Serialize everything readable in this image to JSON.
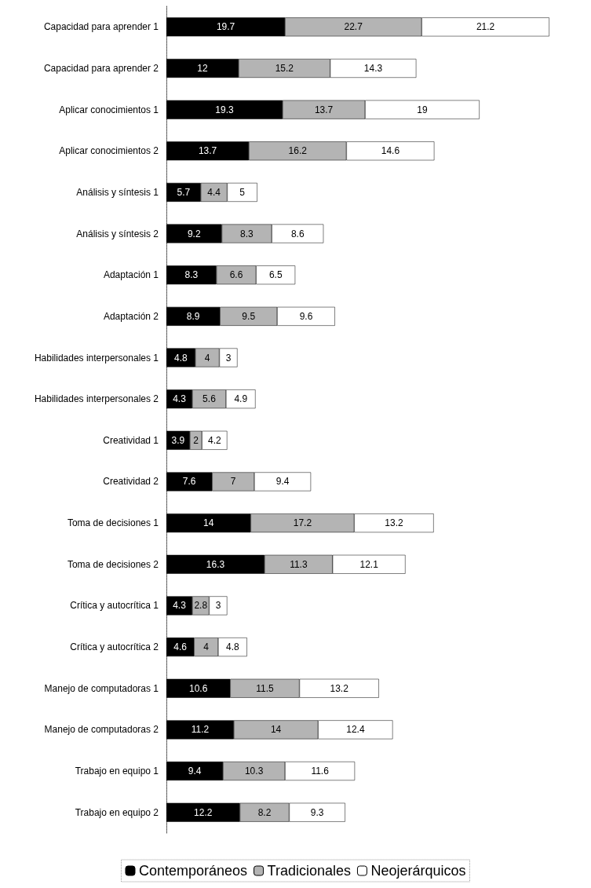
{
  "chart_data": {
    "type": "bar",
    "orientation": "horizontal",
    "stacked": true,
    "data_labels": true,
    "legend": "bottom",
    "tick_labels": "y",
    "categories": [
      "Capacidad para aprender 1",
      "Capacidad para aprender 2",
      "Aplicar conocimientos 1",
      "Aplicar conocimientos 2",
      "Análisis y síntesis 1",
      "Análisis y síntesis 2",
      "Adaptación 1",
      "Adaptación 2",
      "Habilidades interpersonales 1",
      "Habilidades interpersonales 2",
      "Creatividad 1",
      "Creatividad 2",
      "Toma de decisiones 1",
      "Toma de decisiones 2",
      "Crítica y autocrítica 1",
      "Crítica y autocrítica 2",
      "Manejo de computadoras 1",
      "Manejo de computadoras 2",
      "Trabajo en equipo 1",
      "Trabajo en equipo 2"
    ],
    "series": [
      {
        "name": "Contemporáneos",
        "color": "#000000",
        "values": [
          19.7,
          12,
          19.3,
          13.7,
          5.7,
          9.2,
          8.3,
          8.9,
          4.8,
          4.3,
          3.9,
          7.6,
          14,
          16.3,
          4.3,
          4.6,
          10.6,
          11.2,
          9.4,
          12.2
        ]
      },
      {
        "name": "Tradicionales",
        "color": "#b4b4b4",
        "values": [
          22.7,
          15.2,
          13.7,
          16.2,
          4.4,
          8.3,
          6.6,
          9.5,
          4,
          5.6,
          2,
          7,
          17.2,
          11.3,
          2.8,
          4,
          11.5,
          14,
          10.3,
          8.2
        ]
      },
      {
        "name": "Neojerárquicos",
        "color": "#ffffff",
        "values": [
          21.2,
          14.3,
          19,
          14.6,
          5,
          8.6,
          6.5,
          9.6,
          3,
          4.9,
          4.2,
          9.4,
          13.2,
          12.1,
          3,
          4.8,
          13.2,
          12.4,
          11.6,
          9.3
        ]
      }
    ]
  }
}
